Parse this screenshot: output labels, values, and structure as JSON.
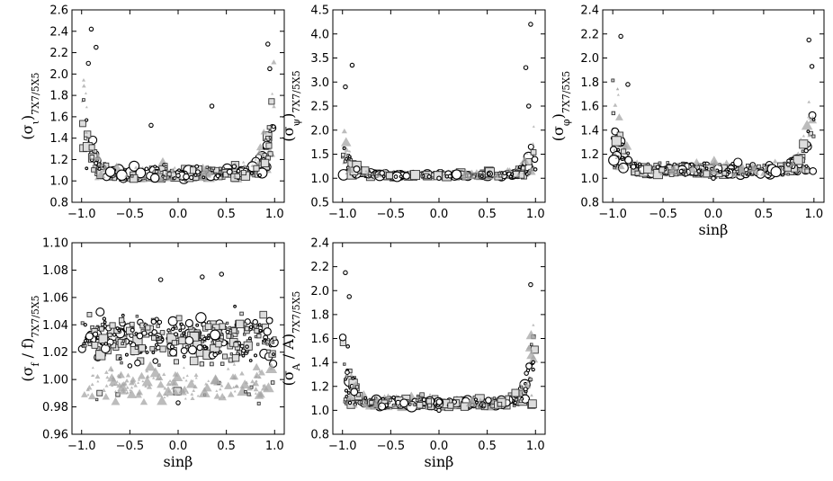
{
  "chart_data": [
    {
      "type": "scatter",
      "ylabel": "(σ_ι)_7X7/5X5",
      "xlabel": "",
      "xlim": [
        -1.1,
        1.1
      ],
      "ylim": [
        0.8,
        2.6
      ],
      "xticks": [
        "−1.0",
        "−0.5",
        "0.0",
        "0.5",
        "1.0"
      ],
      "yticks": [
        "0.8",
        "1.0",
        "1.2",
        "1.4",
        "1.6",
        "1.8",
        "2.0",
        "2.2",
        "2.4",
        "2.6"
      ],
      "profile": {
        "base": 1.02,
        "edge_peak": 2.3,
        "spread": 0.15
      },
      "sample_points": [
        {
          "x": -0.9,
          "y": 2.42
        },
        {
          "x": -0.85,
          "y": 2.25
        },
        {
          "x": -0.93,
          "y": 2.1
        },
        {
          "x": 0.93,
          "y": 2.28
        },
        {
          "x": 0.95,
          "y": 2.05
        },
        {
          "x": 0.35,
          "y": 1.7
        },
        {
          "x": -0.28,
          "y": 1.52
        },
        {
          "x": 0.0,
          "y": 1.05
        }
      ]
    },
    {
      "type": "scatter",
      "ylabel": "(σ_ψ)_7X7/5X5",
      "xlabel": "",
      "xlim": [
        -1.1,
        1.1
      ],
      "ylim": [
        0.5,
        4.5
      ],
      "xticks": [
        "−1.0",
        "−0.5",
        "0.0",
        "0.5",
        "1.0"
      ],
      "yticks": [
        "0.5",
        "1.0",
        "1.5",
        "2.0",
        "2.5",
        "3.0",
        "3.5",
        "4.0",
        "4.5"
      ],
      "profile": {
        "base": 1.03,
        "edge_peak": 2.3,
        "spread": 0.12
      },
      "sample_points": [
        {
          "x": 0.95,
          "y": 4.2
        },
        {
          "x": -0.9,
          "y": 3.35
        },
        {
          "x": 0.9,
          "y": 3.3
        },
        {
          "x": -0.97,
          "y": 2.9
        },
        {
          "x": 0.93,
          "y": 2.5
        },
        {
          "x": 0.0,
          "y": 1.0
        }
      ]
    },
    {
      "type": "scatter",
      "ylabel": "(σ_φ)_7X7/5X5",
      "xlabel": "sinβ",
      "xlim": [
        -1.1,
        1.1
      ],
      "ylim": [
        0.8,
        2.4
      ],
      "xticks": [
        "−1.0",
        "−0.5",
        "0.0",
        "0.5",
        "1.0"
      ],
      "yticks": [
        "0.8",
        "1.0",
        "1.2",
        "1.4",
        "1.6",
        "1.8",
        "2.0",
        "2.2",
        "2.4"
      ],
      "profile": {
        "base": 1.03,
        "edge_peak": 2.15,
        "spread": 0.12
      },
      "sample_points": [
        {
          "x": -0.92,
          "y": 2.18
        },
        {
          "x": 0.95,
          "y": 2.15
        },
        {
          "x": 0.98,
          "y": 1.93
        },
        {
          "x": -0.85,
          "y": 1.78
        },
        {
          "x": 0.0,
          "y": 1.0
        }
      ]
    },
    {
      "type": "scatter",
      "ylabel": "(σ_f / f)_7X7/5X5",
      "xlabel": "sinβ",
      "xlim": [
        -1.1,
        1.1
      ],
      "ylim": [
        0.96,
        1.1
      ],
      "xticks": [
        "−1.0",
        "−0.5",
        "0.0",
        "0.5",
        "1.0"
      ],
      "yticks": [
        "0.96",
        "0.98",
        "1.00",
        "1.02",
        "1.04",
        "1.06",
        "1.08",
        "1.10"
      ],
      "profile": {
        "base": 1.028,
        "edge_peak": 1.028,
        "spread": 0.018
      },
      "sample_points": [
        {
          "x": 0.25,
          "y": 1.075
        },
        {
          "x": 0.45,
          "y": 1.077
        },
        {
          "x": -0.18,
          "y": 1.073
        },
        {
          "x": 0.0,
          "y": 0.983
        },
        {
          "x": -0.5,
          "y": 1.01
        }
      ]
    },
    {
      "type": "scatter",
      "ylabel": "(σ_A / A)_7X7/5X5",
      "xlabel": "sinβ",
      "xlim": [
        -1.1,
        1.1
      ],
      "ylim": [
        0.8,
        2.4
      ],
      "xticks": [
        "−1.0",
        "−0.5",
        "0.0",
        "0.5",
        "1.0"
      ],
      "yticks": [
        "0.8",
        "1.0",
        "1.2",
        "1.4",
        "1.6",
        "1.8",
        "2.0",
        "2.2",
        "2.4"
      ],
      "profile": {
        "base": 1.03,
        "edge_peak": 2.1,
        "spread": 0.1
      },
      "sample_points": [
        {
          "x": -0.97,
          "y": 2.15
        },
        {
          "x": 0.95,
          "y": 2.05
        },
        {
          "x": -0.93,
          "y": 1.95
        },
        {
          "x": 0.0,
          "y": 1.0
        }
      ]
    }
  ],
  "legend": "none",
  "grid": false
}
